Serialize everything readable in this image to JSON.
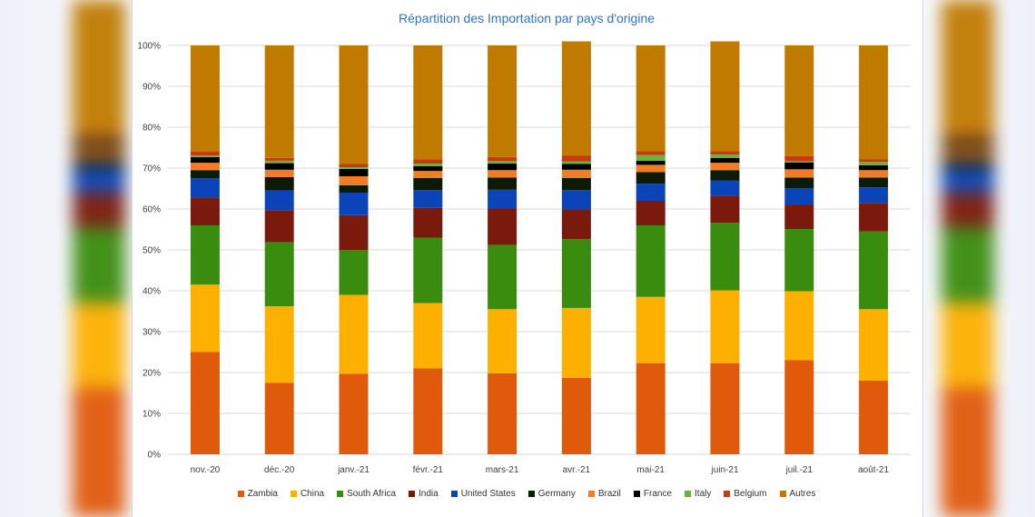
{
  "chart_data": {
    "type": "bar",
    "stacked": true,
    "title": "Répartition des Importation par pays d'origine",
    "categories": [
      "nov.-20",
      "déc.-20",
      "janv.-21",
      "févr.-21",
      "mars-21",
      "avr.-21",
      "mai-21",
      "juin-21",
      "juil.-21",
      "août-21"
    ],
    "yticks": [
      "0%",
      "10%",
      "20%",
      "30%",
      "40%",
      "50%",
      "60%",
      "70%",
      "80%",
      "90%",
      "100%"
    ],
    "ylim": [
      0,
      100
    ],
    "grid": true,
    "legend_position": "bottom",
    "series": [
      {
        "name": "Zambia",
        "color": "#e05a0c",
        "values": [
          25.0,
          17.5,
          19.7,
          21.0,
          19.8,
          18.7,
          22.3,
          22.3,
          23.0,
          18.0
        ]
      },
      {
        "name": "China",
        "color": "#fdb000",
        "values": [
          16.5,
          18.7,
          19.3,
          16.0,
          15.7,
          17.1,
          16.2,
          17.8,
          16.9,
          17.5
        ]
      },
      {
        "name": "South Africa",
        "color": "#3a8c0f",
        "values": [
          14.5,
          15.7,
          11.0,
          16.0,
          15.7,
          16.8,
          17.5,
          16.5,
          15.2,
          19.0
        ]
      },
      {
        "name": "India",
        "color": "#7a1a0c",
        "values": [
          6.8,
          7.8,
          8.5,
          7.3,
          8.8,
          7.3,
          6.0,
          6.6,
          6.0,
          7.0
        ]
      },
      {
        "name": "United States",
        "color": "#0a44b8",
        "values": [
          4.7,
          4.8,
          5.5,
          4.3,
          4.7,
          4.7,
          4.2,
          3.8,
          4.0,
          3.8
        ]
      },
      {
        "name": "Germany",
        "color": "#0c1a06",
        "values": [
          2.0,
          3.3,
          1.8,
          3.0,
          3.0,
          3.0,
          2.8,
          2.5,
          2.6,
          2.4
        ]
      },
      {
        "name": "Brazil",
        "color": "#f07d24",
        "values": [
          1.8,
          1.8,
          2.2,
          1.7,
          1.8,
          2.0,
          1.8,
          1.8,
          2.0,
          1.8
        ]
      },
      {
        "name": "France",
        "color": "#000000",
        "values": [
          1.4,
          1.6,
          1.8,
          1.2,
          1.6,
          1.4,
          1.0,
          1.2,
          1.7,
          1.2
        ]
      },
      {
        "name": "Italy",
        "color": "#6ab23c",
        "values": [
          0.4,
          0.6,
          0.4,
          0.6,
          0.6,
          0.6,
          1.4,
          0.8,
          0.3,
          0.8
        ]
      },
      {
        "name": "Belgium",
        "color": "#c83a0e",
        "values": [
          0.9,
          0.7,
          0.8,
          1.0,
          1.0,
          1.4,
          0.9,
          0.8,
          1.2,
          0.7
        ]
      },
      {
        "name": "Autres",
        "color": "#c07a00",
        "values": [
          26.0,
          27.5,
          29.0,
          27.9,
          27.3,
          28.0,
          25.9,
          26.9,
          27.1,
          27.8
        ]
      }
    ]
  }
}
